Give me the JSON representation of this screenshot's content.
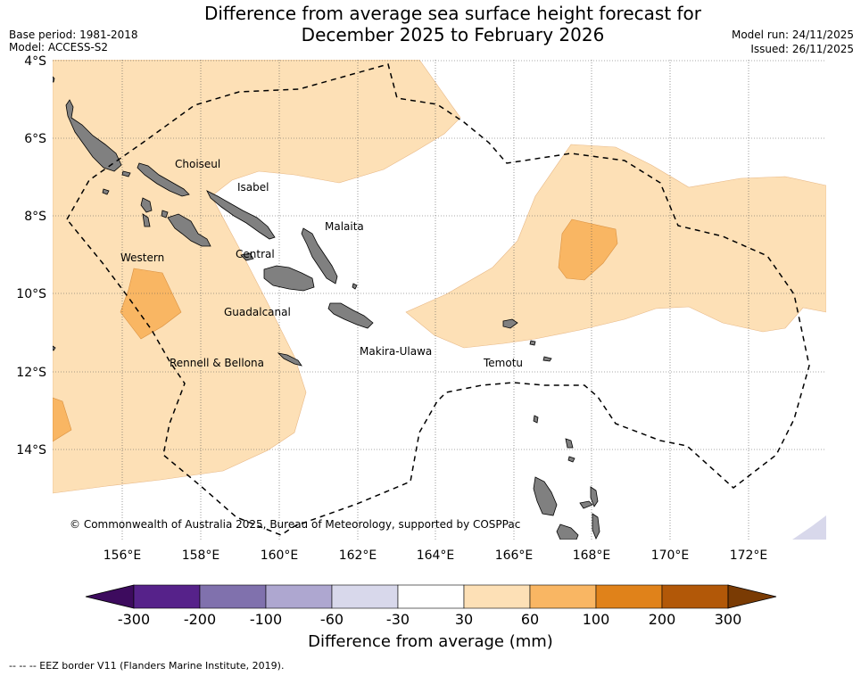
{
  "header": {
    "title_line1": "Difference from average sea surface height forecast for",
    "title_line2": "December 2025 to February 2026",
    "base_period": "Base period: 1981-2018",
    "model": "Model: ACCESS-S2",
    "model_run": "Model run: 24/11/2025",
    "issued": "Issued: 26/11/2025"
  },
  "map": {
    "lat_labels": [
      "4°S",
      "6°S",
      "8°S",
      "10°S",
      "12°S",
      "14°S"
    ],
    "lon_labels": [
      "156°E",
      "158°E",
      "160°E",
      "162°E",
      "164°E",
      "166°E",
      "168°E",
      "170°E",
      "172°E"
    ],
    "places": {
      "choiseul": "Choiseul",
      "isabel": "Isabel",
      "malaita": "Malaita",
      "western": "Western",
      "central": "Central",
      "guadalcanal": "Guadalcanal",
      "makira": "Makira-Ulawa",
      "rennell": "Rennell & Bellona",
      "temotu": "Temotu"
    },
    "credit": "© Commonwealth of Australia 2025, Bureau of Meteorology, supported by COSPPac"
  },
  "colorbar": {
    "title": "Difference from average (mm)",
    "ticks": [
      "-300",
      "-200",
      "-100",
      "-60",
      "-30",
      "30",
      "60",
      "100",
      "200",
      "300"
    ],
    "colors": [
      "#3d0b5e",
      "#56228a",
      "#8071ad",
      "#aea7d0",
      "#d8d8eb",
      "#ffffff",
      "#fde0b6",
      "#f9b663",
      "#e0821a",
      "#b25808",
      "#7a3b04"
    ]
  },
  "footer": {
    "eez_legend": "--  --  -- EEZ border V11 (Flanders Marine Institute, 2019)."
  }
}
